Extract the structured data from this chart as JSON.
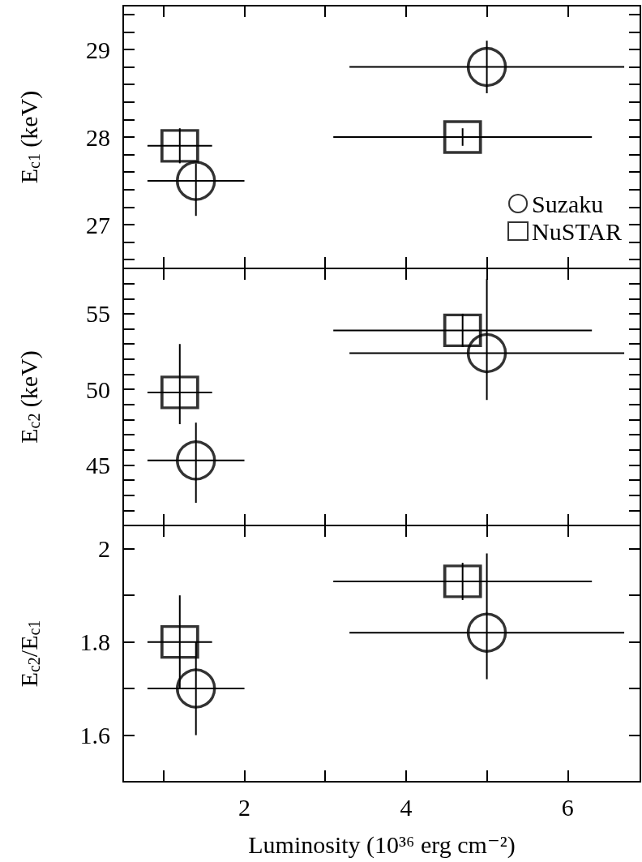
{
  "chart_data": [
    {
      "type": "scatter",
      "ylabel": "E$_{c1}$ (keV)",
      "xlim": [
        0.5,
        6.9
      ],
      "xticks": [
        {
          "value": 1,
          "label": null
        },
        2,
        {
          "value": 3,
          "label": null
        },
        4,
        {
          "value": 5,
          "label": null
        },
        6
      ],
      "ylim": [
        26.5,
        29.5
      ],
      "yticks": [
        {
          "value": 26.6,
          "label": null
        },
        {
          "value": 26.8,
          "label": null
        },
        27,
        {
          "value": 27.2,
          "label": null
        },
        {
          "value": 27.4,
          "label": null
        },
        {
          "value": 27.6,
          "label": null
        },
        {
          "value": 27.8,
          "label": null
        },
        28,
        {
          "value": 28.2,
          "label": null
        },
        {
          "value": 28.4,
          "label": null
        },
        {
          "value": 28.6,
          "label": null
        },
        {
          "value": 28.8,
          "label": null
        },
        29,
        {
          "value": 29.2,
          "label": null
        },
        {
          "value": 29.4,
          "label": null
        }
      ],
      "tick_labels": "y",
      "legend": "bottom right",
      "grid": false,
      "series": [
        {
          "name": "Suzaku",
          "color": "#000000",
          "marker": "circle",
          "x": [
            1.4,
            5.0
          ],
          "values": [
            27.5,
            28.8
          ],
          "errors": [
            [
              27.1,
              27.7
            ],
            [
              28.5,
              29.1
            ]
          ],
          "xerrors": [
            [
              0.8,
              2.0
            ],
            [
              3.3,
              6.7
            ]
          ]
        },
        {
          "name": "NuSTAR",
          "color": "#000000",
          "marker": "square",
          "x": [
            1.2,
            4.7
          ],
          "values": [
            27.9,
            28.0
          ],
          "errors": [
            [
              27.7,
              28.1
            ],
            [
              27.9,
              28.1
            ]
          ],
          "xerrors": [
            [
              0.8,
              1.6
            ],
            [
              3.1,
              6.3
            ]
          ]
        }
      ]
    },
    {
      "type": "scatter",
      "ylabel": "E$_{c2}$ (keV)",
      "xlim": [
        0.5,
        6.9
      ],
      "xticks": [
        {
          "value": 1,
          "label": null
        },
        2,
        {
          "value": 3,
          "label": null
        },
        4,
        {
          "value": 5,
          "label": null
        },
        6
      ],
      "ylim": [
        41,
        58
      ],
      "yticks": [
        {
          "value": 42,
          "label": null
        },
        {
          "value": 43,
          "label": null
        },
        {
          "value": 44,
          "label": null
        },
        45,
        {
          "value": 46,
          "label": null
        },
        {
          "value": 47,
          "label": null
        },
        {
          "value": 48,
          "label": null
        },
        {
          "value": 49,
          "label": null
        },
        50,
        {
          "value": 51,
          "label": null
        },
        {
          "value": 52,
          "label": null
        },
        {
          "value": 53,
          "label": null
        },
        {
          "value": 54,
          "label": null
        },
        55,
        {
          "value": 56,
          "label": null
        },
        {
          "value": 57,
          "label": null
        }
      ],
      "tick_labels": "y",
      "grid": false,
      "series": [
        {
          "color": "#000000",
          "marker": "circle",
          "x": [
            1.4,
            5.0
          ],
          "values": [
            45.3,
            52.4
          ],
          "errors": [
            [
              42.5,
              47.8
            ],
            [
              49.3,
              57.3
            ]
          ],
          "xerrors": [
            [
              0.8,
              2.0
            ],
            [
              3.3,
              6.7
            ]
          ]
        },
        {
          "color": "#000000",
          "marker": "square",
          "x": [
            1.2,
            4.7
          ],
          "values": [
            49.8,
            53.9
          ],
          "errors": [
            [
              47.7,
              53
            ],
            [
              52.8,
              55
            ]
          ],
          "xerrors": [
            [
              0.8,
              1.6
            ],
            [
              3.1,
              6.3
            ]
          ]
        }
      ]
    },
    {
      "type": "scatter",
      "ylabel": "E$_{c2}$/E$_{c1}$",
      "xlabel": "Luminosity (10³⁶ erg cm⁻²)",
      "xlim": [
        0.5,
        6.9
      ],
      "xticks": [
        {
          "value": 1,
          "label": null
        },
        2,
        {
          "value": 3,
          "label": null
        },
        4,
        {
          "value": 5,
          "label": null
        },
        6
      ],
      "ylim": [
        1.5,
        2.05
      ],
      "yticks": [
        1.6,
        {
          "value": 1.7,
          "label": null
        },
        1.8,
        {
          "value": 1.9,
          "label": null
        },
        2
      ],
      "grid": false,
      "series": [
        {
          "color": "#000000",
          "marker": "circle",
          "x": [
            1.4,
            5.0
          ],
          "values": [
            1.7,
            1.82
          ],
          "errors": [
            [
              1.6,
              1.8
            ],
            [
              1.72,
              1.99
            ]
          ],
          "xerrors": [
            [
              0.8,
              2.0
            ],
            [
              3.3,
              6.7
            ]
          ]
        },
        {
          "color": "#000000",
          "marker": "square",
          "x": [
            1.2,
            4.7
          ],
          "values": [
            1.8,
            1.93
          ],
          "errors": [
            [
              1.7,
              1.9
            ],
            [
              1.89,
              1.97
            ]
          ],
          "xerrors": [
            [
              0.8,
              1.6
            ],
            [
              3.1,
              6.3
            ]
          ]
        }
      ]
    }
  ]
}
